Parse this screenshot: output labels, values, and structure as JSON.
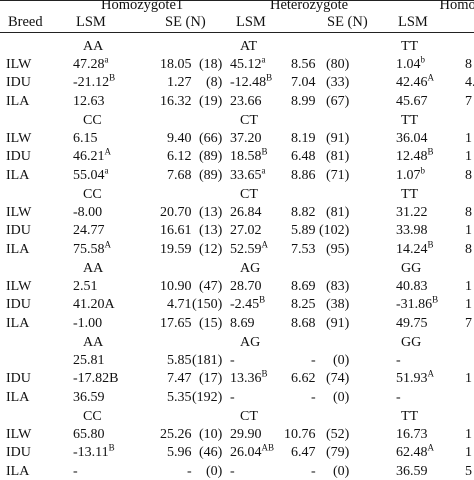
{
  "header": {
    "breed": "Breed",
    "groups": [
      {
        "title": "Homozygote1",
        "lsm": "LSM",
        "se": "SE (N)"
      },
      {
        "title": "Heterozygote",
        "lsm": "LSM",
        "se": "SE (N)"
      },
      {
        "title": "Homozyg",
        "lsm": "LSM",
        "se": ""
      }
    ]
  },
  "blocks": [
    {
      "genotypes": [
        "AA",
        "AT",
        "TT"
      ],
      "rows": [
        {
          "breed": "ILW",
          "g1": {
            "lsm": "47.28",
            "sup": "a",
            "se": "18.05",
            "n": "(18)"
          },
          "g2": {
            "lsm": "45.12",
            "sup": "a",
            "se": "8.56",
            "n": "(80)"
          },
          "g3": {
            "lsm": "1.04",
            "sup": "b",
            "tail": "8"
          }
        },
        {
          "breed": "IDU",
          "g1": {
            "lsm": "-21.12",
            "sup": "B",
            "se": "1.27",
            "n": "(8)"
          },
          "g2": {
            "lsm": "-12.48",
            "sup": "B",
            "se": "7.04",
            "n": "(33)"
          },
          "g3": {
            "lsm": "42.46",
            "sup": "A",
            "tail": "4."
          }
        },
        {
          "breed": "ILA",
          "g1": {
            "lsm": "12.63",
            "sup": "",
            "se": "16.32",
            "n": "(19)"
          },
          "g2": {
            "lsm": "23.66",
            "sup": "",
            "se": "8.99",
            "n": "(67)"
          },
          "g3": {
            "lsm": "45.67",
            "sup": "",
            "tail": "7"
          }
        }
      ]
    },
    {
      "genotypes": [
        "CC",
        "CT",
        "TT"
      ],
      "rows": [
        {
          "breed": "ILW",
          "g1": {
            "lsm": "6.15",
            "sup": "",
            "se": "9.40",
            "n": "(66)"
          },
          "g2": {
            "lsm": "37.20",
            "sup": "",
            "se": "8.19",
            "n": "(91)"
          },
          "g3": {
            "lsm": "36.04",
            "sup": "",
            "tail": "1"
          }
        },
        {
          "breed": "IDU",
          "g1": {
            "lsm": "46.21",
            "sup": "A",
            "se": "6.12",
            "n": "(89)"
          },
          "g2": {
            "lsm": "18.58",
            "sup": "B",
            "se": "6.48",
            "n": "(81)"
          },
          "g3": {
            "lsm": "12.48",
            "sup": "B",
            "tail": "1"
          }
        },
        {
          "breed": "ILA",
          "g1": {
            "lsm": "55.04",
            "sup": "a",
            "se": "7.68",
            "n": "(89)"
          },
          "g2": {
            "lsm": "33.65",
            "sup": "a",
            "se": "8.86",
            "n": "(71)"
          },
          "g3": {
            "lsm": "1.07",
            "sup": "b",
            "tail": "8"
          }
        }
      ]
    },
    {
      "genotypes": [
        "CC",
        "CT",
        "TT"
      ],
      "rows": [
        {
          "breed": "ILW",
          "g1": {
            "lsm": "-8.00",
            "sup": "",
            "se": "20.70",
            "n": "(13)"
          },
          "g2": {
            "lsm": "26.84",
            "sup": "",
            "se": "8.82",
            "n": "(81)"
          },
          "g3": {
            "lsm": "31.22",
            "sup": "",
            "tail": "8"
          }
        },
        {
          "breed": "IDU",
          "g1": {
            "lsm": "24.77",
            "sup": "",
            "se": "16.61",
            "n": "(13)"
          },
          "g2": {
            "lsm": "27.02",
            "sup": "",
            "se": "5.89",
            "n": "(102)"
          },
          "g3": {
            "lsm": "33.98",
            "sup": "",
            "tail": "1"
          }
        },
        {
          "breed": "ILA",
          "g1": {
            "lsm": "75.58",
            "sup": "A",
            "se": "19.59",
            "n": "(12)"
          },
          "g2": {
            "lsm": "52.59",
            "sup": "A",
            "se": "7.53",
            "n": "(95)"
          },
          "g3": {
            "lsm": "14.24",
            "sup": "B",
            "tail": "8"
          }
        }
      ]
    },
    {
      "genotypes": [
        "AA",
        "AG",
        "GG"
      ],
      "rows": [
        {
          "breed": "ILW",
          "g1": {
            "lsm": "2.51",
            "sup": "",
            "se": "10.90",
            "n": "(47)"
          },
          "g2": {
            "lsm": "28.70",
            "sup": "",
            "se": "8.69",
            "n": "(83)"
          },
          "g3": {
            "lsm": "40.83",
            "sup": "",
            "tail": "1"
          }
        },
        {
          "breed": "IDU",
          "g1": {
            "lsm": "41.20A",
            "sup": "",
            "se": "4.71",
            "n": "(150)"
          },
          "g2": {
            "lsm": "-2.45",
            "sup": "B",
            "se": "8.25",
            "n": "(38)"
          },
          "g3": {
            "lsm": "-31.86",
            "sup": "B",
            "tail": "1"
          }
        },
        {
          "breed": "ILA",
          "g1": {
            "lsm": "-1.00",
            "sup": "",
            "se": "17.65",
            "n": "(15)"
          },
          "g2": {
            "lsm": "8.69",
            "sup": "",
            "se": "8.68",
            "n": "(91)"
          },
          "g3": {
            "lsm": "49.75",
            "sup": "",
            "tail": "7"
          }
        }
      ]
    },
    {
      "genotypes": [
        "AA",
        "AG",
        "GG"
      ],
      "rows": [
        {
          "breed": "",
          "g1": {
            "lsm": "25.81",
            "sup": "",
            "se": "5.85",
            "n": "(181)"
          },
          "g2": {
            "lsm": "-",
            "sup": "",
            "se": "-",
            "n": "(0)"
          },
          "g3": {
            "lsm": "-",
            "sup": "",
            "tail": ""
          }
        },
        {
          "breed": "IDU",
          "g1": {
            "lsm": "-17.82B",
            "sup": "",
            "se": "7.47",
            "n": "(17)"
          },
          "g2": {
            "lsm": "13.36",
            "sup": "B",
            "se": "6.62",
            "n": "(74)"
          },
          "g3": {
            "lsm": "51.93",
            "sup": "A",
            "tail": "1"
          }
        },
        {
          "breed": "ILA",
          "g1": {
            "lsm": "36.59",
            "sup": "",
            "se": "5.35",
            "n": "(192)"
          },
          "g2": {
            "lsm": "-",
            "sup": "",
            "se": "-",
            "n": "(0)"
          },
          "g3": {
            "lsm": "-",
            "sup": "",
            "tail": ""
          }
        }
      ]
    },
    {
      "genotypes": [
        "CC",
        "CT",
        "TT"
      ],
      "rows": [
        {
          "breed": "ILW",
          "g1": {
            "lsm": "65.80",
            "sup": "",
            "se": "25.26",
            "n": "(10)"
          },
          "g2": {
            "lsm": "29.90",
            "sup": "",
            "se": "10.76",
            "n": "(52)"
          },
          "g3": {
            "lsm": "16.73",
            "sup": "",
            "tail": "1"
          }
        },
        {
          "breed": "IDU",
          "g1": {
            "lsm": "-13.11",
            "sup": "B",
            "se": "5.96",
            "n": "(46)"
          },
          "g2": {
            "lsm": "26.04",
            "sup": "AB",
            "se": "6.47",
            "n": "(79)"
          },
          "g3": {
            "lsm": "62.48",
            "sup": "A",
            "tail": "1"
          }
        },
        {
          "breed": "ILA",
          "g1": {
            "lsm": "-",
            "sup": "",
            "se": "-",
            "n": "(0)"
          },
          "g2": {
            "lsm": "-",
            "sup": "",
            "se": "-",
            "n": "(0)"
          },
          "g3": {
            "lsm": "36.59",
            "sup": "",
            "tail": "5"
          }
        }
      ]
    }
  ]
}
